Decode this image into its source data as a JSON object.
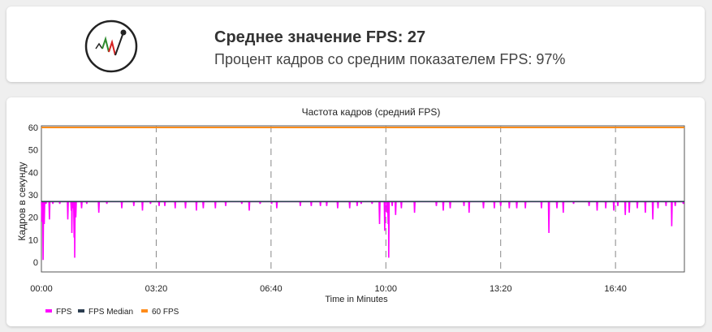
{
  "summary": {
    "avg_fps_label": "Среднее значение FPS: 27",
    "percent_label": "Процент кадров со средним показателем FPS: 97%"
  },
  "colors": {
    "fps": "#ff00ff",
    "median": "#2c3e50",
    "sixty": "#ff8c1a",
    "grid": "#888888"
  },
  "chart_data": {
    "type": "line",
    "title": "Частота кадров (средний FPS)",
    "xlabel": "Time in Minutes",
    "ylabel": "Кадров в секунду",
    "ylim": [
      0,
      60
    ],
    "xlim": [
      0,
      1120
    ],
    "x_unit": "seconds",
    "xticks": [
      {
        "value": 0,
        "label": "00:00"
      },
      {
        "value": 200,
        "label": "03:20"
      },
      {
        "value": 400,
        "label": "06:40"
      },
      {
        "value": 600,
        "label": "10:00"
      },
      {
        "value": 800,
        "label": "13:20"
      },
      {
        "value": 1000,
        "label": "16:40"
      }
    ],
    "yticks": [
      0,
      10,
      20,
      30,
      40,
      50,
      60
    ],
    "grid": "x-dashed",
    "legend_position": "bottom-left",
    "legend": [
      "FPS",
      "FPS Median",
      "60 FPS"
    ],
    "series": [
      {
        "name": "FPS",
        "baseline": 27,
        "dips": [
          [
            1,
            18
          ],
          [
            3,
            1
          ],
          [
            5,
            17
          ],
          [
            8,
            26
          ],
          [
            14,
            19
          ],
          [
            20,
            26
          ],
          [
            32,
            26
          ],
          [
            46,
            19
          ],
          [
            52,
            23
          ],
          [
            53,
            13
          ],
          [
            55,
            24
          ],
          [
            57,
            11
          ],
          [
            58,
            2
          ],
          [
            60,
            20
          ],
          [
            70,
            24
          ],
          [
            79,
            26
          ],
          [
            100,
            22
          ],
          [
            114,
            26
          ],
          [
            140,
            24
          ],
          [
            161,
            25
          ],
          [
            176,
            23
          ],
          [
            190,
            26
          ],
          [
            205,
            25
          ],
          [
            215,
            25
          ],
          [
            233,
            24
          ],
          [
            251,
            24
          ],
          [
            270,
            23
          ],
          [
            282,
            24
          ],
          [
            303,
            24
          ],
          [
            321,
            25
          ],
          [
            349,
            26
          ],
          [
            362,
            23
          ],
          [
            381,
            26
          ],
          [
            401,
            26
          ],
          [
            410,
            24
          ],
          [
            451,
            25
          ],
          [
            470,
            25
          ],
          [
            486,
            25
          ],
          [
            497,
            25
          ],
          [
            516,
            24
          ],
          [
            537,
            24
          ],
          [
            550,
            25
          ],
          [
            557,
            26
          ],
          [
            576,
            26
          ],
          [
            589,
            17
          ],
          [
            598,
            14
          ],
          [
            602,
            22
          ],
          [
            604,
            17
          ],
          [
            605,
            2
          ],
          [
            611,
            25
          ],
          [
            617,
            21
          ],
          [
            627,
            24
          ],
          [
            650,
            22
          ],
          [
            688,
            25
          ],
          [
            700,
            23
          ],
          [
            712,
            24
          ],
          [
            736,
            25
          ],
          [
            745,
            22
          ],
          [
            770,
            24
          ],
          [
            789,
            24
          ],
          [
            800,
            25
          ],
          [
            815,
            24
          ],
          [
            828,
            24
          ],
          [
            843,
            24
          ],
          [
            871,
            24
          ],
          [
            884,
            13
          ],
          [
            898,
            24
          ],
          [
            909,
            22
          ],
          [
            927,
            26
          ],
          [
            954,
            25
          ],
          [
            968,
            23
          ],
          [
            983,
            24
          ],
          [
            997,
            23
          ],
          [
            1004,
            25
          ],
          [
            1017,
            21
          ],
          [
            1024,
            22
          ],
          [
            1038,
            24
          ],
          [
            1052,
            22
          ],
          [
            1065,
            19
          ],
          [
            1074,
            24
          ],
          [
            1088,
            25
          ],
          [
            1098,
            16
          ],
          [
            1104,
            25
          ],
          [
            1110,
            27
          ],
          [
            1118,
            26
          ]
        ]
      },
      {
        "name": "FPS Median",
        "value": 27
      },
      {
        "name": "60 FPS",
        "value": 60
      }
    ]
  }
}
